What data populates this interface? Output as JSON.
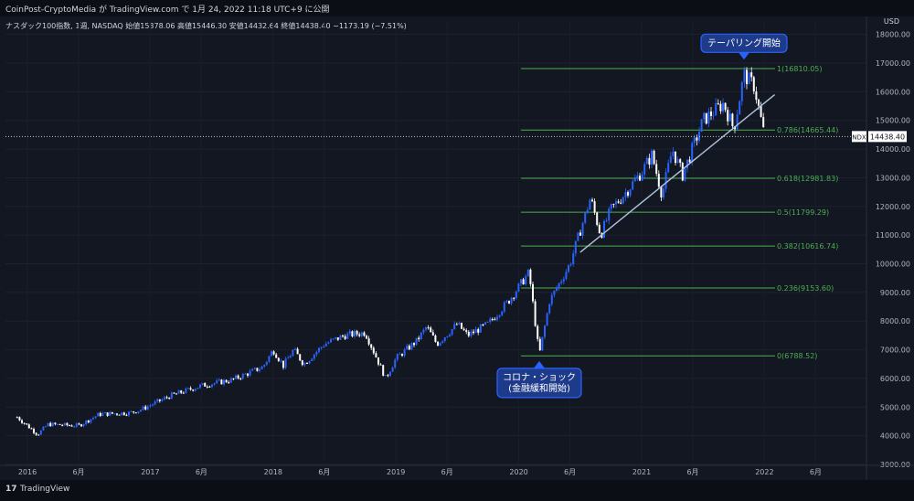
{
  "header": {
    "title": "CoinPost-CryptoMedia が TradingView.com で 1月 24, 2022 11:18 UTC+9 に公開",
    "symbol_line": "ナスダック100指数, 1週, NASDAQ  始値15378.06  高値15446.30  安値14432.64  終値14438.40  −1173.19 (−7.51%)",
    "currency": "USD"
  },
  "footer": {
    "logo": "17",
    "brand": "TradingView"
  },
  "colors": {
    "background": "#131722",
    "candle_up": "#2962ff",
    "candle_down": "#ffffff",
    "fib_line": "#4caf50",
    "trendline": "#b0c4de",
    "callout_bg": "#1e3a8a",
    "callout_border": "#2962ff"
  },
  "chart_data": {
    "type": "candlestick",
    "symbol": "NDX",
    "interval": "1週",
    "ylim": [
      3000,
      18500
    ],
    "y_ticks": [
      "3000.00",
      "4000.00",
      "5000.00",
      "6000.00",
      "7000.00",
      "8000.00",
      "9000.00",
      "10000.00",
      "11000.00",
      "12000.00",
      "13000.00",
      "14000.00",
      "15000.00",
      "16000.00",
      "17000.00",
      "18000.00"
    ],
    "x_ticks": [
      "2016",
      "6月",
      "2017",
      "6月",
      "2018",
      "6月",
      "2019",
      "6月",
      "2020",
      "6月",
      "2021",
      "6月",
      "2022",
      "6月"
    ],
    "last_price": {
      "label": "NDX",
      "value": "14438.40"
    },
    "price_path": [
      {
        "date": "2015-12",
        "value": 4650
      },
      {
        "date": "2016-02",
        "value": 4050
      },
      {
        "date": "2016-03",
        "value": 4400
      },
      {
        "date": "2016-06",
        "value": 4350
      },
      {
        "date": "2016-08",
        "value": 4750
      },
      {
        "date": "2016-11",
        "value": 4800
      },
      {
        "date": "2016-12",
        "value": 4900
      },
      {
        "date": "2017-03",
        "value": 5400
      },
      {
        "date": "2017-06",
        "value": 5750
      },
      {
        "date": "2017-09",
        "value": 5950
      },
      {
        "date": "2017-12",
        "value": 6400
      },
      {
        "date": "2018-01",
        "value": 7000
      },
      {
        "date": "2018-02",
        "value": 6450
      },
      {
        "date": "2018-03",
        "value": 7000
      },
      {
        "date": "2018-04",
        "value": 6500
      },
      {
        "date": "2018-06",
        "value": 7200
      },
      {
        "date": "2018-08",
        "value": 7500
      },
      {
        "date": "2018-10",
        "value": 7600
      },
      {
        "date": "2018-11",
        "value": 6800
      },
      {
        "date": "2018-12",
        "value": 6000
      },
      {
        "date": "2019-01",
        "value": 6700
      },
      {
        "date": "2019-03",
        "value": 7300
      },
      {
        "date": "2019-04",
        "value": 7800
      },
      {
        "date": "2019-05",
        "value": 7200
      },
      {
        "date": "2019-07",
        "value": 7900
      },
      {
        "date": "2019-08",
        "value": 7500
      },
      {
        "date": "2019-10",
        "value": 7900
      },
      {
        "date": "2019-12",
        "value": 8700
      },
      {
        "date": "2020-02",
        "value": 9700
      },
      {
        "date": "2020-03",
        "value": 6800
      },
      {
        "date": "2020-04",
        "value": 8700
      },
      {
        "date": "2020-06",
        "value": 10000
      },
      {
        "date": "2020-08",
        "value": 12300
      },
      {
        "date": "2020-09",
        "value": 11000
      },
      {
        "date": "2020-10",
        "value": 11900
      },
      {
        "date": "2020-11",
        "value": 12300
      },
      {
        "date": "2021-01",
        "value": 13200
      },
      {
        "date": "2021-02",
        "value": 13800
      },
      {
        "date": "2021-03",
        "value": 12400
      },
      {
        "date": "2021-04",
        "value": 14000
      },
      {
        "date": "2021-05",
        "value": 13100
      },
      {
        "date": "2021-07",
        "value": 15000
      },
      {
        "date": "2021-09",
        "value": 15600
      },
      {
        "date": "2021-10",
        "value": 14700
      },
      {
        "date": "2021-11",
        "value": 16600
      },
      {
        "date": "2021-12",
        "value": 16200
      },
      {
        "date": "2022-01",
        "value": 14438.4
      }
    ],
    "fibonacci_levels": [
      {
        "label": "1(16810.05)",
        "value": 16810.05
      },
      {
        "label": "0.786(14665.44)",
        "value": 14665.44
      },
      {
        "label": "0.618(12981.83)",
        "value": 12981.83
      },
      {
        "label": "0.5(11799.29)",
        "value": 11799.29
      },
      {
        "label": "0.382(10616.74)",
        "value": 10616.74
      },
      {
        "label": "0.236(9153.60)",
        "value": 9153.6
      },
      {
        "label": "0(6788.52)",
        "value": 6788.52
      }
    ],
    "trendline": [
      {
        "date": "2020-07",
        "value": 10400
      },
      {
        "date": "2022-02",
        "value": 15900
      }
    ],
    "annotations": [
      {
        "text": "テーパリング開始",
        "lines": [
          "テーパリング開始"
        ],
        "date": "2021-11",
        "value": 16800
      },
      {
        "text": "コロナ・ショック\n(金融緩和開始)",
        "lines": [
          "コロナ・ショック",
          "(金融緩和開始)"
        ],
        "date": "2020-03",
        "value": 6800
      }
    ]
  }
}
